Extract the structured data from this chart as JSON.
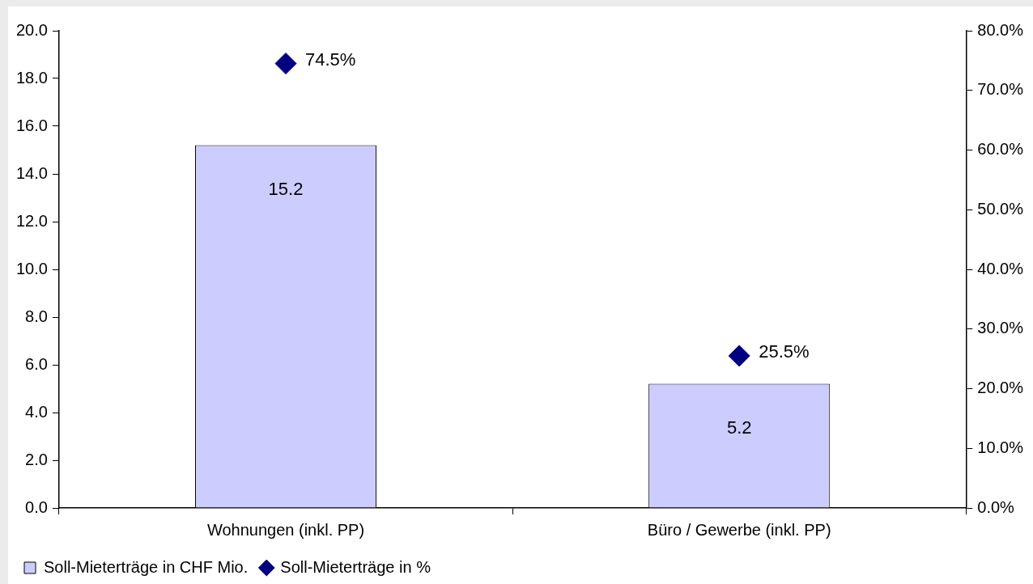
{
  "chart_data": {
    "type": "bar",
    "categories": [
      "Wohnungen (inkl. PP)",
      "Büro / Gewerbe (inkl. PP)"
    ],
    "series": [
      {
        "name": "Soll-Mieterträge in CHF Mio.",
        "color": "#ccccff",
        "values": [
          15.2,
          5.2
        ],
        "value_labels": [
          "15.2",
          "5.2"
        ]
      },
      {
        "name": "Soll-Mieterträge in %",
        "type": "scatter",
        "axis": "y2",
        "marker": "diamond",
        "color": "#000080",
        "values": [
          74.5,
          25.5
        ],
        "value_labels": [
          "74.5%",
          "25.5%"
        ]
      }
    ],
    "ylim": [
      0,
      20
    ],
    "yticks": [
      {
        "value": 0,
        "label": "0.0"
      },
      {
        "value": 2,
        "label": "2.0"
      },
      {
        "value": 4,
        "label": "4.0"
      },
      {
        "value": 6,
        "label": "6.0"
      },
      {
        "value": 8,
        "label": "8.0"
      },
      {
        "value": 10,
        "label": "10.0"
      },
      {
        "value": 12,
        "label": "12.0"
      },
      {
        "value": 14,
        "label": "14.0"
      },
      {
        "value": 16,
        "label": "16.0"
      },
      {
        "value": 18,
        "label": "18.0"
      },
      {
        "value": 20,
        "label": "20.0"
      }
    ],
    "y2lim": [
      0,
      80
    ],
    "y2ticks": [
      {
        "value": 0,
        "label": "0.0%"
      },
      {
        "value": 10,
        "label": "10.0%"
      },
      {
        "value": 20,
        "label": "20.0%"
      },
      {
        "value": 30,
        "label": "30.0%"
      },
      {
        "value": 40,
        "label": "40.0%"
      },
      {
        "value": 50,
        "label": "50.0%"
      },
      {
        "value": 60,
        "label": "60.0%"
      },
      {
        "value": 70,
        "label": "70.0%"
      },
      {
        "value": 80,
        "label": "80.0%"
      }
    ],
    "grid": false,
    "legend": "bottom left"
  }
}
